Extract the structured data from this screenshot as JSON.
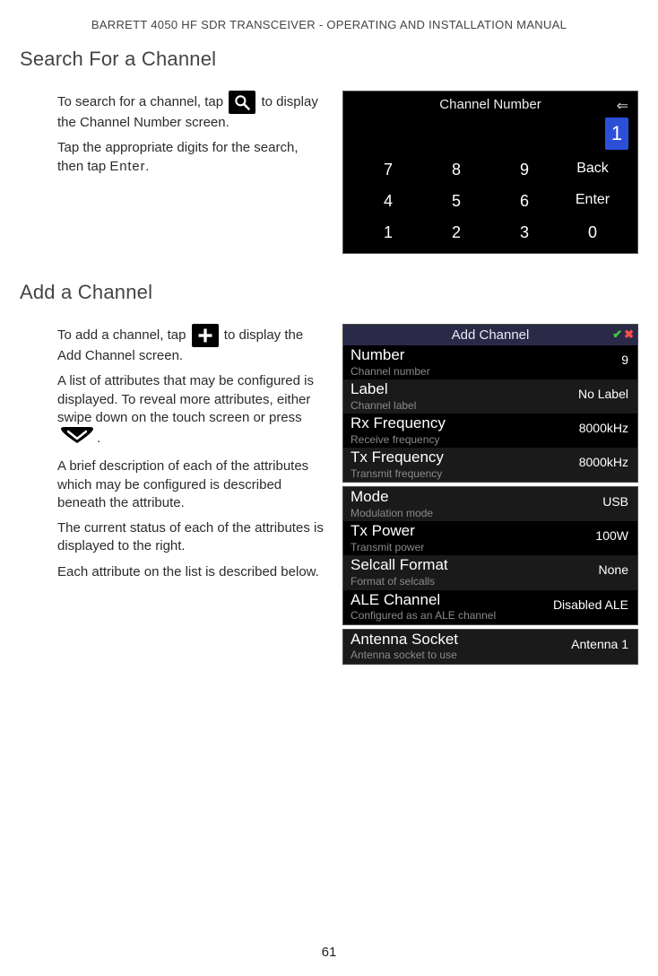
{
  "doc_header": "BARRETT 4050 HF SDR TRANSCEIVER - OPERATING AND INSTALLATION MANUAL",
  "page_number": "61",
  "search_section": {
    "title": "Search For a Channel",
    "p1_a": "To search for a channel, tap ",
    "p1_b": " to display the Channel Number screen.",
    "p2_a": "Tap the appropriate digits for the search, then tap ",
    "p2_enter": "Enter",
    "p2_b": ".",
    "keypad": {
      "title": "Channel Number",
      "current": "1",
      "keys": [
        [
          "7",
          "8",
          "9",
          "Back"
        ],
        [
          "4",
          "5",
          "6",
          "Enter"
        ],
        [
          "1",
          "2",
          "3",
          "0"
        ]
      ]
    }
  },
  "add_section": {
    "title": "Add a Channel",
    "p1_a": "To add a channel, tap ",
    "p1_b": " to display the Add Channel screen.",
    "p2_a": "A list of attributes that may be con­figured is displayed. To reveal more attributes, either swipe down on the touch screen or press ",
    "p2_b": ".",
    "p3": "A brief description of each of the attributes which may be configured is described beneath the attribute.",
    "p4": "The current status of each of the attributes is displayed to the right.",
    "p5": "Each attribute on the list is described below.",
    "screen_header": "Add Channel",
    "panels": [
      {
        "header": true,
        "rows": [
          {
            "title": "Number",
            "sub": "Channel number",
            "val": "9",
            "alt": false
          },
          {
            "title": "Label",
            "sub": "Channel label",
            "val": "No Label",
            "alt": true
          },
          {
            "title": "Rx Frequency",
            "sub": "Receive frequency",
            "val": "8000kHz",
            "alt": false
          },
          {
            "title": "Tx Frequency",
            "sub": "Transmit frequency",
            "val": "8000kHz",
            "alt": true
          }
        ]
      },
      {
        "header": false,
        "rows": [
          {
            "title": "Mode",
            "sub": "Modulation mode",
            "val": "USB",
            "alt": true
          },
          {
            "title": "Tx Power",
            "sub": "Transmit power",
            "val": "100W",
            "alt": false
          },
          {
            "title": "Selcall Format",
            "sub": "Format of selcalls",
            "val": "None",
            "alt": true
          },
          {
            "title": "ALE Channel",
            "sub": "Configured as an ALE channel",
            "val": "Disabled ALE",
            "alt": false
          }
        ]
      },
      {
        "header": false,
        "rows": [
          {
            "title": "Antenna Socket",
            "sub": "Antenna socket to use",
            "val": "Antenna 1",
            "alt": true
          }
        ]
      }
    ]
  },
  "colors": {
    "page_bg": "#ffffff",
    "text": "#222222",
    "muted": "#8a8a8a",
    "screen_bg": "#000000",
    "header_bg": "#2a2a48",
    "row_alt_bg": "#1a1a1a",
    "accent_blue": "#2c4fd8",
    "check_green": "#3fcf3f",
    "x_red": "#ff4d4d"
  }
}
